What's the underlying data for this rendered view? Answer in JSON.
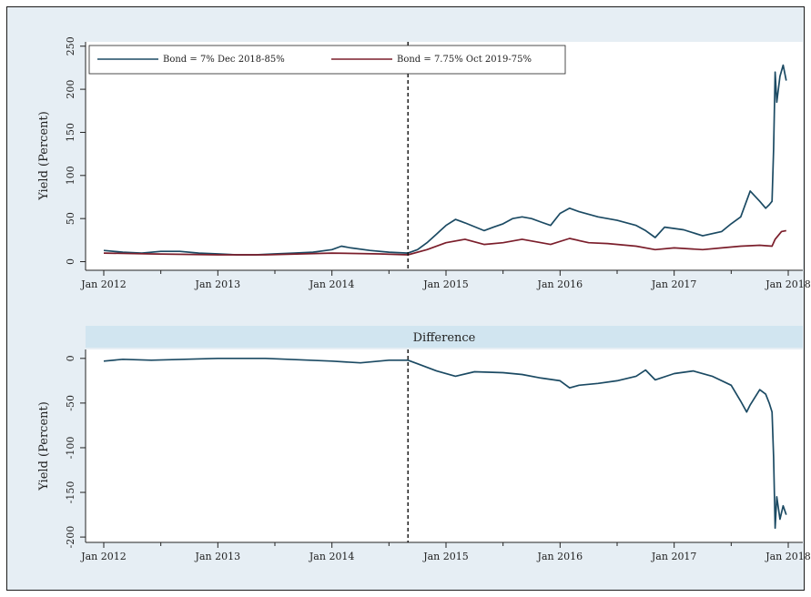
{
  "chart_data": [
    {
      "type": "line",
      "panel": "top",
      "ylabel": "Yield (Percent)",
      "x_tick_labels": [
        "Jan 2012",
        "Jan 2013",
        "Jan 2014",
        "Jan 2015",
        "Jan 2016",
        "Jan 2017",
        "Jan 2018"
      ],
      "y_ticks": [
        0,
        50,
        100,
        150,
        200,
        250
      ],
      "ylim": [
        -10,
        255
      ],
      "xlim": [
        "2012-01",
        "2018-01"
      ],
      "vline": "2014-09",
      "legend": "top",
      "grid": false,
      "series": [
        {
          "name": "Bond = 7% Dec 2018-85%",
          "color": "#1b4a63",
          "points": [
            [
              "2012-01",
              13
            ],
            [
              "2012-03",
              11
            ],
            [
              "2012-05",
              10
            ],
            [
              "2012-07",
              12
            ],
            [
              "2012-09",
              12
            ],
            [
              "2012-11",
              10
            ],
            [
              "2013-01",
              9
            ],
            [
              "2013-03",
              8
            ],
            [
              "2013-05",
              8
            ],
            [
              "2013-07",
              9
            ],
            [
              "2013-09",
              10
            ],
            [
              "2013-11",
              11
            ],
            [
              "2014-01",
              14
            ],
            [
              "2014-02",
              18
            ],
            [
              "2014-03",
              16
            ],
            [
              "2014-05",
              13
            ],
            [
              "2014-07",
              11
            ],
            [
              "2014-09",
              10
            ],
            [
              "2014-10",
              14
            ],
            [
              "2014-11",
              22
            ],
            [
              "2014-12",
              32
            ],
            [
              "2015-01",
              42
            ],
            [
              "2015-02",
              49
            ],
            [
              "2015-03",
              45
            ],
            [
              "2015-05",
              36
            ],
            [
              "2015-06",
              40
            ],
            [
              "2015-07",
              44
            ],
            [
              "2015-08",
              50
            ],
            [
              "2015-09",
              52
            ],
            [
              "2015-10",
              50
            ],
            [
              "2015-11",
              46
            ],
            [
              "2015-12",
              42
            ],
            [
              "2016-01",
              56
            ],
            [
              "2016-02",
              62
            ],
            [
              "2016-03",
              58
            ],
            [
              "2016-05",
              52
            ],
            [
              "2016-07",
              48
            ],
            [
              "2016-09",
              42
            ],
            [
              "2016-10",
              36
            ],
            [
              "2016-11",
              28
            ],
            [
              "2016-12",
              40
            ],
            [
              "2017-02",
              37
            ],
            [
              "2017-04",
              30
            ],
            [
              "2017-06",
              35
            ],
            [
              "2017-07",
              44
            ],
            [
              "2017-08",
              52
            ],
            [
              "2017-09",
              82
            ],
            [
              "2017-10",
              70
            ],
            [
              "2017-10-20",
              62
            ],
            [
              "2017-11",
              66
            ],
            [
              "2017-11-10",
              70
            ],
            [
              "2017-11-15",
              130
            ],
            [
              "2017-11-20",
              220
            ],
            [
              "2017-11-25",
              185
            ],
            [
              "2017-12-05",
              215
            ],
            [
              "2017-12-15",
              228
            ],
            [
              "2017-12-25",
              210
            ]
          ]
        },
        {
          "name": "Bond = 7.75% Oct 2019-75%",
          "color": "#7b1e2b",
          "points": [
            [
              "2012-01",
              10
            ],
            [
              "2012-06",
              9
            ],
            [
              "2013-01",
              8
            ],
            [
              "2013-06",
              8
            ],
            [
              "2014-01",
              10
            ],
            [
              "2014-06",
              9
            ],
            [
              "2014-09",
              8
            ],
            [
              "2014-11",
              14
            ],
            [
              "2015-01",
              22
            ],
            [
              "2015-03",
              26
            ],
            [
              "2015-05",
              20
            ],
            [
              "2015-07",
              22
            ],
            [
              "2015-09",
              26
            ],
            [
              "2015-12",
              20
            ],
            [
              "2016-02",
              27
            ],
            [
              "2016-04",
              22
            ],
            [
              "2016-06",
              21
            ],
            [
              "2016-09",
              18
            ],
            [
              "2016-11",
              14
            ],
            [
              "2017-01",
              16
            ],
            [
              "2017-04",
              14
            ],
            [
              "2017-06",
              16
            ],
            [
              "2017-08",
              18
            ],
            [
              "2017-10",
              19
            ],
            [
              "2017-11-10",
              18
            ],
            [
              "2017-11-20",
              26
            ],
            [
              "2017-12-10",
              35
            ],
            [
              "2017-12-25",
              36
            ]
          ]
        }
      ]
    },
    {
      "type": "line",
      "panel": "bottom",
      "title": "Difference",
      "ylabel": "Yield (Percent)",
      "x_tick_labels": [
        "Jan 2012",
        "Jan 2013",
        "Jan 2014",
        "Jan 2015",
        "Jan 2016",
        "Jan 2017",
        "Jan 2018"
      ],
      "y_ticks": [
        0,
        -50,
        -100,
        -150,
        -200
      ],
      "ylim": [
        -206,
        10
      ],
      "xlim": [
        "2012-01",
        "2018-01"
      ],
      "vline": "2014-09",
      "grid": false,
      "series": [
        {
          "color": "#1b4a63",
          "points": [
            [
              "2012-01",
              -3
            ],
            [
              "2012-03",
              -1
            ],
            [
              "2012-06",
              -2
            ],
            [
              "2013-01",
              0
            ],
            [
              "2013-06",
              0
            ],
            [
              "2014-01",
              -3
            ],
            [
              "2014-04",
              -5
            ],
            [
              "2014-07",
              -2
            ],
            [
              "2014-09",
              -2
            ],
            [
              "2014-10",
              -6
            ],
            [
              "2014-12",
              -14
            ],
            [
              "2015-02",
              -20
            ],
            [
              "2015-04",
              -15
            ],
            [
              "2015-07",
              -16
            ],
            [
              "2015-09",
              -18
            ],
            [
              "2015-11",
              -22
            ],
            [
              "2016-01",
              -25
            ],
            [
              "2016-02",
              -33
            ],
            [
              "2016-03",
              -30
            ],
            [
              "2016-05",
              -28
            ],
            [
              "2016-07",
              -25
            ],
            [
              "2016-09",
              -20
            ],
            [
              "2016-10",
              -13
            ],
            [
              "2016-11",
              -24
            ],
            [
              "2017-01",
              -17
            ],
            [
              "2017-03",
              -14
            ],
            [
              "2017-05",
              -20
            ],
            [
              "2017-07",
              -30
            ],
            [
              "2017-08",
              -48
            ],
            [
              "2017-08-20",
              -60
            ],
            [
              "2017-09",
              -52
            ],
            [
              "2017-10",
              -35
            ],
            [
              "2017-10-20",
              -40
            ],
            [
              "2017-11",
              -50
            ],
            [
              "2017-11-10",
              -60
            ],
            [
              "2017-11-15",
              -110
            ],
            [
              "2017-11-20",
              -190
            ],
            [
              "2017-11-25",
              -155
            ],
            [
              "2017-12-05",
              -180
            ],
            [
              "2017-12-15",
              -165
            ],
            [
              "2017-12-25",
              -175
            ]
          ]
        }
      ]
    }
  ]
}
